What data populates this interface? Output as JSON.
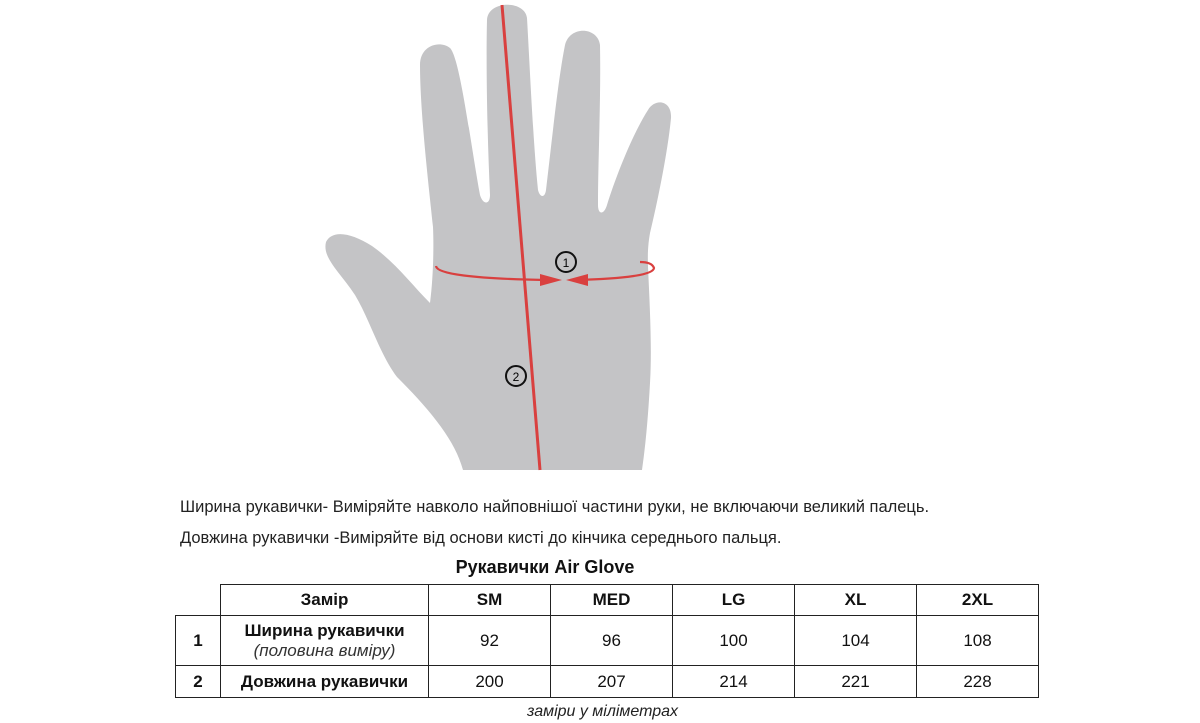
{
  "diagram": {
    "markers": [
      "1",
      "2"
    ],
    "colors": {
      "hand": "#c4c4c6",
      "measure_line": "#d9403f"
    }
  },
  "instructions": {
    "width": "Ширина рукавички- Виміряйте навколо найповнішої частини руки, не включаючи великий палець.",
    "length": "Довжина рукавички -Виміряйте від основи кисті до кінчика середнього пальця."
  },
  "table": {
    "title": "Рукавички Air Glove",
    "header": {
      "measure": "Замір",
      "sizes": [
        "SM",
        "MED",
        "LG",
        "XL",
        "2XL"
      ]
    },
    "rows": [
      {
        "num": "1",
        "label": "Ширина рукавички",
        "sublabel": "(половина виміру)",
        "values": [
          "92",
          "96",
          "100",
          "104",
          "108"
        ]
      },
      {
        "num": "2",
        "label": "Довжина рукавички",
        "values": [
          "200",
          "207",
          "214",
          "221",
          "228"
        ]
      }
    ],
    "caption": "заміри у міліметрах"
  }
}
